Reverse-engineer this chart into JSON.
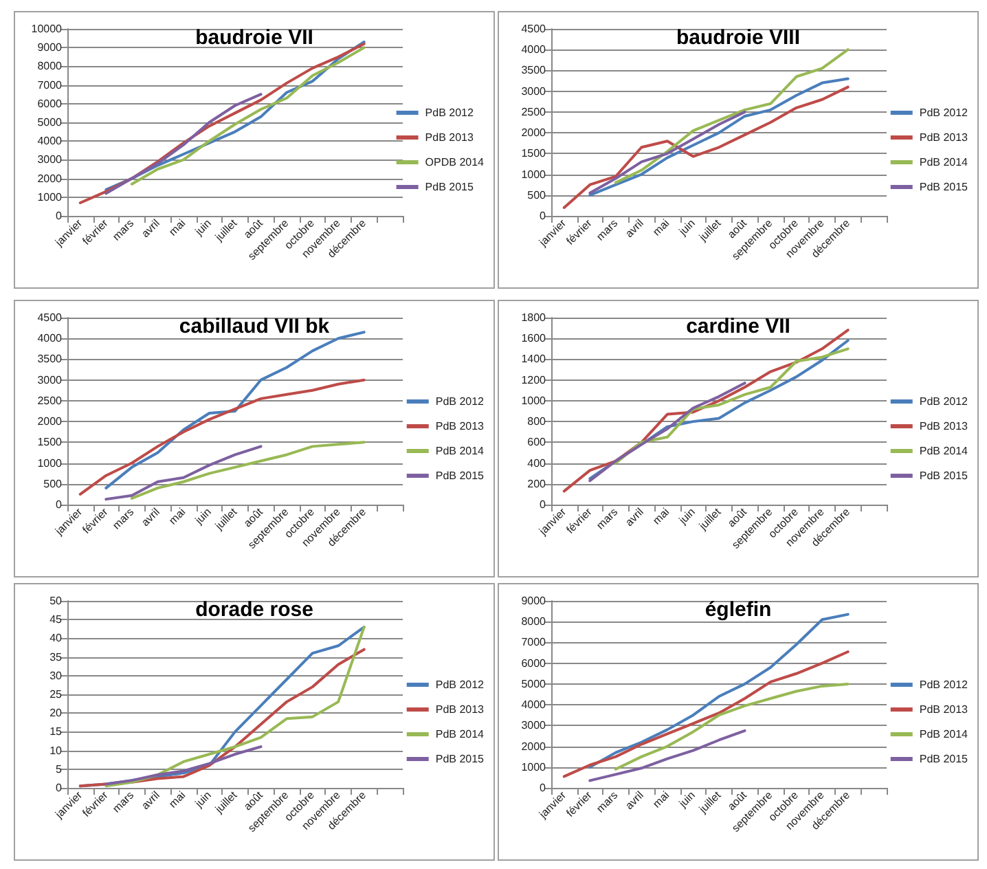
{
  "chart_data": [
    {
      "type": "line",
      "title": "baudroie VII",
      "categories": [
        "janvier",
        "février",
        "mars",
        "avril",
        "mai",
        "juin",
        "juillet",
        "août",
        "septembre",
        "octobre",
        "novembre",
        "décembre",
        null
      ],
      "ylim": [
        0,
        10000
      ],
      "yticks": [
        0,
        1000,
        2000,
        3000,
        4000,
        5000,
        6000,
        7000,
        8000,
        9000,
        10000
      ],
      "grid": "y",
      "legend": "right",
      "marker": "none",
      "series": [
        {
          "name": "PdB 2012",
          "color": "#4a7ebb",
          "values": [
            null,
            1400,
            2000,
            2700,
            3300,
            3900,
            4500,
            5300,
            6600,
            7200,
            8400,
            9300,
            null
          ]
        },
        {
          "name": "PdB 2013",
          "color": "#be4b48",
          "values": [
            700,
            1300,
            2000,
            2900,
            3900,
            4800,
            5500,
            6200,
            7100,
            7900,
            8500,
            9200,
            null
          ]
        },
        {
          "name": "OPDB 2014",
          "color": "#98b954",
          "values": [
            null,
            null,
            1700,
            2500,
            3000,
            4000,
            4900,
            5700,
            6300,
            7500,
            8200,
            9000,
            null
          ]
        },
        {
          "name": "PdB 2015",
          "color": "#7d60a0",
          "values": [
            null,
            1200,
            2000,
            2800,
            3800,
            5000,
            5900,
            6500,
            null,
            null,
            null,
            null,
            null
          ]
        }
      ]
    },
    {
      "type": "line",
      "title": "baudroie VIII",
      "categories": [
        "janvier",
        "février",
        "mars",
        "avril",
        "mai",
        "juin",
        "juillet",
        "août",
        "septembre",
        "octobre",
        "novembre",
        "décembre",
        null
      ],
      "ylim": [
        0,
        4500
      ],
      "yticks": [
        0,
        500,
        1000,
        1500,
        2000,
        2500,
        3000,
        3500,
        4000,
        4500
      ],
      "grid": "y",
      "legend": "right",
      "marker": "none",
      "series": [
        {
          "name": "PdB 2012",
          "color": "#4a7ebb",
          "values": [
            null,
            500,
            750,
            1000,
            1400,
            1700,
            2000,
            2400,
            2550,
            2900,
            3200,
            3300,
            null
          ]
        },
        {
          "name": "PdB 2013",
          "color": "#be4b48",
          "values": [
            200,
            750,
            950,
            1650,
            1800,
            1430,
            1650,
            1950,
            2250,
            2600,
            2800,
            3100,
            null
          ]
        },
        {
          "name": "PdB 2014",
          "color": "#98b954",
          "values": [
            null,
            null,
            800,
            1100,
            1550,
            2050,
            2300,
            2550,
            2700,
            3350,
            3550,
            4000,
            null
          ]
        },
        {
          "name": "PdB 2015",
          "color": "#7d60a0",
          "values": [
            null,
            550,
            900,
            1300,
            1500,
            1850,
            2200,
            2500,
            null,
            null,
            null,
            null,
            null
          ]
        }
      ]
    },
    {
      "type": "line",
      "title": "cabillaud VII bk",
      "categories": [
        "janvier",
        "février",
        "mars",
        "avril",
        "mai",
        "juin",
        "juillet",
        "août",
        "septembre",
        "octobre",
        "novembre",
        "décembre",
        null
      ],
      "ylim": [
        0,
        4500
      ],
      "yticks": [
        0,
        500,
        1000,
        1500,
        2000,
        2500,
        3000,
        3500,
        4000,
        4500
      ],
      "grid": "y",
      "legend": "right",
      "marker": "none",
      "series": [
        {
          "name": "PdB 2012",
          "color": "#4a7ebb",
          "values": [
            null,
            400,
            900,
            1250,
            1800,
            2200,
            2250,
            3000,
            3300,
            3700,
            4000,
            4150,
            null
          ]
        },
        {
          "name": "PdB 2013",
          "color": "#be4b48",
          "values": [
            250,
            700,
            1000,
            1400,
            1750,
            2050,
            2300,
            2550,
            2650,
            2750,
            2900,
            3000,
            null
          ]
        },
        {
          "name": "PdB 2014",
          "color": "#98b954",
          "values": [
            null,
            null,
            150,
            400,
            550,
            750,
            900,
            1050,
            1200,
            1400,
            1450,
            1500,
            null
          ]
        },
        {
          "name": "PdB 2015",
          "color": "#7d60a0",
          "values": [
            null,
            130,
            220,
            550,
            650,
            950,
            1200,
            1400,
            null,
            null,
            null,
            null,
            null
          ]
        }
      ]
    },
    {
      "type": "line",
      "title": "cardine VII",
      "categories": [
        "janvier",
        "février",
        "mars",
        "avril",
        "mai",
        "juin",
        "juillet",
        "août",
        "septembre",
        "octobre",
        "novembre",
        "décembre",
        null
      ],
      "ylim": [
        0,
        1800
      ],
      "yticks": [
        0,
        200,
        400,
        600,
        800,
        1000,
        1200,
        1400,
        1600,
        1800
      ],
      "grid": "y",
      "legend": "right",
      "marker": "none",
      "series": [
        {
          "name": "PdB 2012",
          "color": "#4a7ebb",
          "values": [
            null,
            250,
            420,
            580,
            750,
            800,
            830,
            980,
            1100,
            1230,
            1390,
            1580,
            null
          ]
        },
        {
          "name": "PdB 2013",
          "color": "#be4b48",
          "values": [
            130,
            330,
            420,
            600,
            870,
            890,
            1000,
            1130,
            1280,
            1370,
            1500,
            1680,
            null
          ]
        },
        {
          "name": "PdB 2014",
          "color": "#98b954",
          "values": [
            null,
            null,
            400,
            600,
            650,
            920,
            960,
            1060,
            1130,
            1380,
            1420,
            1500,
            null
          ]
        },
        {
          "name": "PdB 2015",
          "color": "#7d60a0",
          "values": [
            null,
            230,
            420,
            580,
            730,
            930,
            1040,
            1170,
            null,
            null,
            null,
            null,
            null
          ]
        }
      ]
    },
    {
      "type": "line",
      "title": "dorade rose",
      "categories": [
        "janvier",
        "février",
        "mars",
        "avril",
        "mai",
        "juin",
        "juillet",
        "août",
        "septembre",
        "octobre",
        "novembre",
        "décembre",
        null
      ],
      "ylim": [
        0,
        50
      ],
      "yticks": [
        0,
        5,
        10,
        15,
        20,
        25,
        30,
        35,
        40,
        45,
        50
      ],
      "grid": "y",
      "legend": "right",
      "marker": "none",
      "series": [
        {
          "name": "PdB 2012",
          "color": "#4a7ebb",
          "values": [
            0.5,
            1,
            2,
            3,
            4,
            6,
            15,
            22,
            29,
            36,
            38,
            43,
            null
          ]
        },
        {
          "name": "PdB 2013",
          "color": "#be4b48",
          "values": [
            0.5,
            1,
            1.5,
            2.5,
            3,
            6,
            11,
            17,
            23,
            27,
            33,
            37,
            null
          ]
        },
        {
          "name": "PdB 2014",
          "color": "#98b954",
          "values": [
            null,
            0.5,
            1.5,
            3.5,
            7,
            9,
            11,
            13.5,
            18.5,
            19,
            23,
            43,
            null
          ]
        },
        {
          "name": "PdB 2015",
          "color": "#7d60a0",
          "values": [
            null,
            1,
            2,
            3.5,
            4.5,
            6.5,
            9,
            11,
            null,
            null,
            null,
            null,
            null
          ]
        }
      ]
    },
    {
      "type": "line",
      "title": "églefin",
      "categories": [
        "janvier",
        "février",
        "mars",
        "avril",
        "mai",
        "juin",
        "juillet",
        "août",
        "septembre",
        "octobre",
        "novembre",
        "décembre",
        null
      ],
      "ylim": [
        0,
        9000
      ],
      "yticks": [
        0,
        1000,
        2000,
        3000,
        4000,
        5000,
        6000,
        7000,
        8000,
        9000
      ],
      "grid": "y",
      "legend": "right",
      "marker": "none",
      "series": [
        {
          "name": "PdB 2012",
          "color": "#4a7ebb",
          "values": [
            null,
            1000,
            1700,
            2200,
            2800,
            3500,
            4400,
            5000,
            5800,
            6900,
            8100,
            8350,
            null
          ]
        },
        {
          "name": "PdB 2013",
          "color": "#be4b48",
          "values": [
            550,
            1100,
            1500,
            2100,
            2600,
            3100,
            3600,
            4300,
            5100,
            5500,
            6000,
            6550,
            null
          ]
        },
        {
          "name": "PdB 2014",
          "color": "#98b954",
          "values": [
            null,
            null,
            900,
            1500,
            2000,
            2700,
            3500,
            3950,
            4300,
            4650,
            4900,
            5000,
            null
          ]
        },
        {
          "name": "PdB 2015",
          "color": "#7d60a0",
          "values": [
            null,
            350,
            650,
            950,
            1400,
            1800,
            2300,
            2750,
            null,
            null,
            null,
            null,
            null
          ]
        }
      ]
    }
  ]
}
